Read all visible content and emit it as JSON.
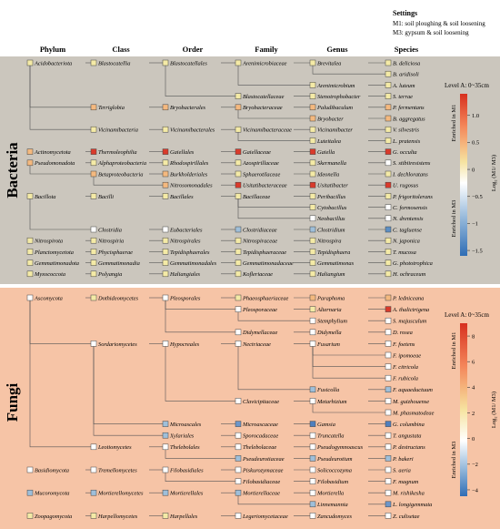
{
  "settings": {
    "title": "Settings",
    "m1": "M1: soil ploughing & soil loosening",
    "m3": "M3: gypsum & soil loosening"
  },
  "headers": [
    "Phylum",
    "Class",
    "Order",
    "Family",
    "Genus",
    "Species"
  ],
  "sections": [
    {
      "label": "Bacteria",
      "bg": "#cbc6bd",
      "legend": {
        "title": "Level A: 0~35cm",
        "enriched_top": "Enriched in M1",
        "enriched_bottom": "Enriched in M3",
        "axis_label": "Log₂ (M1/ M3)",
        "ticks": [
          "1.0",
          "0.5",
          "0",
          "−0.5",
          "−1",
          "−1.5"
        ],
        "tick_values": [
          1.0,
          0.5,
          0,
          -0.5,
          -1,
          -1.5
        ],
        "range": [
          -1.6,
          1.4
        ]
      },
      "rows": [
        [
          "Acidobacteriota",
          "Blastocatellia",
          "Blastocatellales",
          "Arenimicrobiaceae",
          "Brevitalea",
          "B. deliciosa"
        ],
        [
          "",
          "",
          "",
          "",
          "",
          "B. aridisoli"
        ],
        [
          "",
          "",
          "",
          "",
          "Arenimicrobium",
          "A. luteum"
        ],
        [
          "",
          "",
          "",
          "Blastocatellaceae",
          "Stenotrophobacter",
          "S. terrae"
        ],
        [
          "",
          "Terriglobia",
          "Bryobacterales",
          "Bryobacteraceae",
          "Paludibaculum",
          "P. fermentans"
        ],
        [
          "",
          "",
          "",
          "",
          "Bryobacter",
          "B. aggregatus"
        ],
        [
          "",
          "Vicinamibacteria",
          "Vicinamibacterales",
          "Vicinamibacteraceae",
          "Vicinamibacter",
          "V. silvestris"
        ],
        [
          "",
          "",
          "",
          "",
          "Luteitalea",
          "L. pratensis"
        ],
        [
          "Actinomycetota",
          "Thermoleophilia",
          "Gaiellales",
          "Gaiellaceae",
          "Gaiella",
          "G. occulta"
        ],
        [
          "Pseudomonadota",
          "Alphaproteobacteria",
          "Rhodospirillales",
          "Azospirillaceae",
          "Skermanella",
          "S. stibiiresistens"
        ],
        [
          "",
          "Betaproteobacteria",
          "Burkholderiales",
          "Sphaerotilaceae",
          "Ideonella",
          "I. dechloratans"
        ],
        [
          "",
          "",
          "Nitrosomonadales",
          "Usitatibacteraceae",
          "Usitatibacter",
          "U. rugosus"
        ],
        [
          "Bacillota",
          "Bacilli",
          "Bacillales",
          "Bacillaceae",
          "Peribacillus",
          "P. frigoritolerans"
        ],
        [
          "",
          "",
          "",
          "",
          "Cytobacillus",
          "C. formosensis"
        ],
        [
          "",
          "",
          "",
          "",
          "Neobacillus",
          "N. drentensis"
        ],
        [
          "",
          "Clostridia",
          "Eubacteriales",
          "Clostridiaceae",
          "Clostridium",
          "C. tagluense"
        ],
        [
          "Nitrospirota",
          "Nitrospiria",
          "Nitrospirales",
          "Nitrospiraceae",
          "Nitrospira",
          "N. japonica"
        ],
        [
          "Planctomycetota",
          "Phycisphaerae",
          "Tepidisphaerales",
          "Tepidisphaeraceae",
          "Tepidisphaera",
          "T. mucosa"
        ],
        [
          "Gemmatimonadota",
          "Gemmatimonadia",
          "Gemmatimonadales",
          "Gemmatimonadaceae",
          "Gemmatimonas",
          "G. phototrophica"
        ],
        [
          "Myxococcota",
          "Polyangia",
          "Haliangiales",
          "Kofleriaceae",
          "Haliangium",
          "H. ochraceum"
        ]
      ],
      "colors": [
        [
          "#f4eaa6",
          "#f4eaa6",
          "#f4eaa6",
          "#f4eaa6",
          "#f4eaa6",
          "#f4eaa6"
        ],
        [
          null,
          null,
          null,
          null,
          null,
          "#f4eaa6"
        ],
        [
          null,
          null,
          null,
          null,
          "#f4eaa6",
          "#f4eaa6"
        ],
        [
          null,
          null,
          null,
          "#f4eaa6",
          "#f4eaa6",
          "#f4eaa6"
        ],
        [
          null,
          "#f4b97f",
          "#f4b97f",
          "#f4b97f",
          "#f4b97f",
          "#f4b97f"
        ],
        [
          null,
          null,
          null,
          null,
          "#f4b97f",
          "#f4b97f"
        ],
        [
          null,
          "#f4eaa6",
          "#f4eaa6",
          "#f4eaa6",
          "#f4eaa6",
          "#f4eaa6"
        ],
        [
          null,
          null,
          null,
          null,
          "#f4eaa6",
          "#f4eaa6"
        ],
        [
          "#f4b97f",
          "#d93a2b",
          "#d93a2b",
          "#d93a2b",
          "#d93a2b",
          "#d93a2b"
        ],
        [
          "#f4b97f",
          "#f4eaa6",
          "#f4eaa6",
          "#f4eaa6",
          "#f4eaa6",
          "#ffffff"
        ],
        [
          null,
          "#f4b97f",
          "#f4b97f",
          "#f4eaa6",
          "#f4eaa6",
          "#f4eaa6"
        ],
        [
          null,
          null,
          "#f4b97f",
          "#d93a2b",
          "#d93a2b",
          "#d93a2b"
        ],
        [
          "#f4eaa6",
          "#f4eaa6",
          "#f4eaa6",
          "#f4eaa6",
          "#f4eaa6",
          "#f4eaa6"
        ],
        [
          null,
          null,
          null,
          null,
          "#f4eaa6",
          "#ffffff"
        ],
        [
          null,
          null,
          null,
          null,
          "#ffffff",
          "#ffffff"
        ],
        [
          null,
          "#ffffff",
          "#ffffff",
          "#9fbfd9",
          "#9fbfd9",
          "#5d8fc4"
        ],
        [
          "#f4eaa6",
          "#f4eaa6",
          "#f4eaa6",
          "#f4eaa6",
          "#f4eaa6",
          "#f4eaa6"
        ],
        [
          "#f4eaa6",
          "#f4eaa6",
          "#f4eaa6",
          "#f4eaa6",
          "#f4eaa6",
          "#f4eaa6"
        ],
        [
          "#f4eaa6",
          "#f4eaa6",
          "#f4eaa6",
          "#f4eaa6",
          "#f4eaa6",
          "#f4eaa6"
        ],
        [
          "#f4eaa6",
          "#f4eaa6",
          "#f4eaa6",
          "#f4eaa6",
          "#f4eaa6",
          "#f4eaa6"
        ]
      ]
    },
    {
      "label": "Fungi",
      "bg": "#f6c4a6",
      "legend": {
        "title": "Level A: 0~35cm",
        "enriched_top": "Enriched in M1",
        "enriched_bottom": "Enriched in M3",
        "axis_label": "Log₂ (M1/ M3)",
        "ticks": [
          "8",
          "6",
          "4",
          "2",
          "0",
          "−2",
          "−4"
        ],
        "tick_values": [
          8,
          6,
          4,
          2,
          0,
          -2,
          -4
        ],
        "range": [
          -4.5,
          9
        ]
      },
      "rows": [
        [
          "Ascomycota",
          "Dothideomycetes",
          "Pleosporales",
          "Phaeosphaeriaceae",
          "Paraphoma",
          "P. ledniceana"
        ],
        [
          "",
          "",
          "",
          "Pleosporaceae",
          "Alternaria",
          "A. thalictrigena"
        ],
        [
          "",
          "",
          "",
          "",
          "Stemphylium",
          "S. majusculum"
        ],
        [
          "",
          "",
          "",
          "Didymellaceae",
          "Didymella",
          "D. rosea"
        ],
        [
          "",
          "Sordariomycetes",
          "Hypocreales",
          "Nectriaceae",
          "Fusarium",
          "F. foetens"
        ],
        [
          "",
          "",
          "",
          "",
          "",
          "F. ipomoeae"
        ],
        [
          "",
          "",
          "",
          "",
          "",
          "F. citricola"
        ],
        [
          "",
          "",
          "",
          "",
          "",
          "F. rubicola"
        ],
        [
          "",
          "",
          "",
          "",
          "Fusicolla",
          "F. aquaeductuum"
        ],
        [
          "",
          "",
          "",
          "Clavicipitaceae",
          "Metarhizium",
          "M. guizhouense"
        ],
        [
          "",
          "",
          "",
          "",
          "",
          "M. phasmatodeae"
        ],
        [
          "",
          "",
          "Microascales",
          "Microascaceae",
          "Gamsia",
          "G. columbina"
        ],
        [
          "",
          "",
          "Xylariales",
          "Sporocadaceae",
          "Truncatella",
          "T. angustata"
        ],
        [
          "",
          "Leotiomycetes",
          "Thelebolales",
          "Thelebolaceae",
          "Pseudogymnoascus",
          "P. destructans"
        ],
        [
          "",
          "",
          "",
          "Pseudeurotiaceae",
          "Pseudeurotium",
          "P. bakeri"
        ],
        [
          "Basidiomycota",
          "Tremellomycetes",
          "Filobasidiales",
          "Piskurozymaceae",
          "Solicoccozyma",
          "S. aeria"
        ],
        [
          "",
          "",
          "",
          "Filobasidiaceae",
          "Filobasidium",
          "F. magnum"
        ],
        [
          "Mucoromycota",
          "Mortierellomycetes",
          "Mortierellales",
          "Mortierellaceae",
          "Mortierella",
          "M. rishikesha"
        ],
        [
          "",
          "",
          "",
          "",
          "Linnemannia",
          "L. longigemmata"
        ],
        [
          "Zoopagomycota",
          "Harpellomycetes",
          "Harpellales",
          "Legeriomycetaceae",
          "Zancudomyces",
          "Z. culisetae"
        ]
      ],
      "colors": [
        [
          "#ffffff",
          "#f4eaa6",
          "#ffffff",
          "#f4eaa6",
          "#f4b97f",
          "#f4b97f"
        ],
        [
          null,
          null,
          null,
          "#ffffff",
          "#f4eaa6",
          "#d93a2b"
        ],
        [
          null,
          null,
          null,
          null,
          "#ffffff",
          "#ffffff"
        ],
        [
          null,
          null,
          null,
          "#ffffff",
          "#ffffff",
          "#ffffff"
        ],
        [
          null,
          "#ffffff",
          "#ffffff",
          "#ffffff",
          "#ffffff",
          "#ffffff"
        ],
        [
          null,
          null,
          null,
          null,
          null,
          "#ffffff"
        ],
        [
          null,
          null,
          null,
          null,
          null,
          "#ffffff"
        ],
        [
          null,
          null,
          null,
          null,
          null,
          "#ffffff"
        ],
        [
          null,
          null,
          null,
          null,
          "#9fbfd9",
          "#9fbfd9"
        ],
        [
          null,
          null,
          null,
          "#ffffff",
          "#ffffff",
          "#ffffff"
        ],
        [
          null,
          null,
          null,
          null,
          null,
          "#ffffff"
        ],
        [
          null,
          null,
          "#9fbfd9",
          "#6d96c9",
          "#4f7fbd",
          "#4f7fbd"
        ],
        [
          null,
          null,
          "#9fbfd9",
          "#ffffff",
          "#ffffff",
          "#ffffff"
        ],
        [
          null,
          "#ffffff",
          "#ffffff",
          "#ffffff",
          "#ffffff",
          "#ffffff"
        ],
        [
          null,
          null,
          null,
          "#9fbfd9",
          "#9fbfd9",
          "#9fbfd9"
        ],
        [
          "#ffffff",
          "#ffffff",
          "#ffffff",
          "#ffffff",
          "#ffffff",
          "#ffffff"
        ],
        [
          null,
          null,
          null,
          "#ffffff",
          "#ffffff",
          "#ffffff"
        ],
        [
          "#9fbfd9",
          "#9fbfd9",
          "#9fbfd9",
          "#9fbfd9",
          "#ffffff",
          "#ffffff"
        ],
        [
          null,
          null,
          null,
          null,
          "#9fbfd9",
          "#6d96c9"
        ],
        [
          "#f4eaa6",
          "#f4eaa6",
          "#f4eaa6",
          "#ffffff",
          "#ffffff",
          "#ffffff"
        ]
      ]
    }
  ]
}
